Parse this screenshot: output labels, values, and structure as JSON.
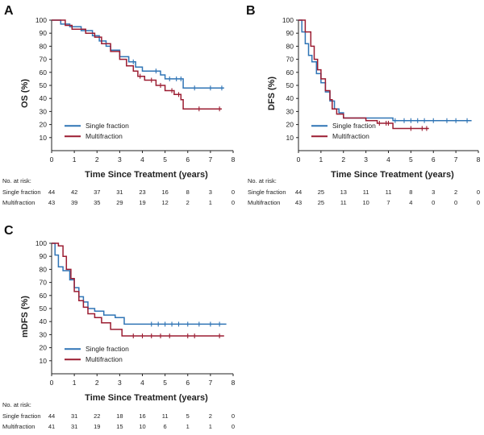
{
  "colors": {
    "single": "#2f74b5",
    "multi": "#9b1c31",
    "axis": "#222222"
  },
  "risk_header": "No. at risk:",
  "chart_data": [
    {
      "panel": "A",
      "type": "line",
      "xlabel": "Time Since Treatment (years)",
      "ylabel": "OS (%)",
      "xlim": [
        0,
        8
      ],
      "ylim": [
        0,
        100
      ],
      "xticks": [
        "0",
        "1",
        "2",
        "3",
        "4",
        "5",
        "6",
        "7",
        "8"
      ],
      "yticks": [
        "10",
        "20",
        "30",
        "40",
        "50",
        "60",
        "70",
        "80",
        "90",
        "100"
      ],
      "legend": "bottom-left",
      "series": [
        {
          "name": "Single fraction",
          "color_key": "single",
          "points": [
            [
              0,
              100
            ],
            [
              0.4,
              100
            ],
            [
              0.4,
              97
            ],
            [
              0.8,
              97
            ],
            [
              0.8,
              95
            ],
            [
              1.3,
              95
            ],
            [
              1.3,
              92
            ],
            [
              1.8,
              92
            ],
            [
              1.8,
              88
            ],
            [
              2.1,
              88
            ],
            [
              2.1,
              84
            ],
            [
              2.4,
              84
            ],
            [
              2.4,
              80
            ],
            [
              2.6,
              80
            ],
            [
              2.6,
              77
            ],
            [
              3.0,
              77
            ],
            [
              3.0,
              72
            ],
            [
              3.4,
              72
            ],
            [
              3.4,
              68
            ],
            [
              3.7,
              68
            ],
            [
              3.7,
              64
            ],
            [
              4.0,
              64
            ],
            [
              4.0,
              61
            ],
            [
              4.8,
              61
            ],
            [
              4.8,
              58
            ],
            [
              5.0,
              58
            ],
            [
              5.0,
              55
            ],
            [
              5.8,
              55
            ],
            [
              5.8,
              48
            ],
            [
              7.6,
              48
            ]
          ],
          "censors": [
            [
              3.4,
              70
            ],
            [
              3.6,
              68
            ],
            [
              4.6,
              61
            ],
            [
              5.2,
              55
            ],
            [
              5.5,
              55
            ],
            [
              5.7,
              55
            ],
            [
              6.3,
              48
            ],
            [
              7.0,
              48
            ],
            [
              7.5,
              48
            ]
          ],
          "risk": [
            "44",
            "42",
            "37",
            "31",
            "23",
            "16",
            "8",
            "3",
            "0"
          ]
        },
        {
          "name": "Multifraction",
          "color_key": "multi",
          "points": [
            [
              0,
              100
            ],
            [
              0.6,
              100
            ],
            [
              0.6,
              96
            ],
            [
              0.9,
              96
            ],
            [
              0.9,
              93
            ],
            [
              1.5,
              93
            ],
            [
              1.5,
              90
            ],
            [
              1.9,
              90
            ],
            [
              1.9,
              87
            ],
            [
              2.2,
              87
            ],
            [
              2.2,
              82
            ],
            [
              2.6,
              82
            ],
            [
              2.6,
              76
            ],
            [
              3.0,
              76
            ],
            [
              3.0,
              70
            ],
            [
              3.3,
              70
            ],
            [
              3.3,
              65
            ],
            [
              3.6,
              65
            ],
            [
              3.6,
              61
            ],
            [
              3.8,
              61
            ],
            [
              3.8,
              57
            ],
            [
              4.1,
              57
            ],
            [
              4.1,
              54
            ],
            [
              4.6,
              54
            ],
            [
              4.6,
              50
            ],
            [
              5.0,
              50
            ],
            [
              5.0,
              46
            ],
            [
              5.4,
              46
            ],
            [
              5.4,
              43
            ],
            [
              5.7,
              43
            ],
            [
              5.7,
              39
            ],
            [
              5.8,
              39
            ],
            [
              5.8,
              32
            ],
            [
              7.5,
              32
            ]
          ],
          "censors": [
            [
              3.9,
              57
            ],
            [
              4.4,
              54
            ],
            [
              4.8,
              50
            ],
            [
              5.3,
              46
            ],
            [
              5.6,
              43
            ],
            [
              6.5,
              32
            ],
            [
              7.4,
              32
            ]
          ],
          "risk": [
            "43",
            "39",
            "35",
            "29",
            "19",
            "12",
            "2",
            "1",
            "0"
          ]
        }
      ]
    },
    {
      "panel": "B",
      "type": "line",
      "xlabel": "Time Since Treatment (years)",
      "ylabel": "DFS (%)",
      "xlim": [
        0,
        8
      ],
      "ylim": [
        0,
        100
      ],
      "xticks": [
        "0",
        "1",
        "2",
        "3",
        "4",
        "5",
        "6",
        "7",
        "8"
      ],
      "yticks": [
        "10",
        "20",
        "30",
        "40",
        "50",
        "60",
        "70",
        "80",
        "90",
        "100"
      ],
      "legend": "bottom-left",
      "series": [
        {
          "name": "Single fraction",
          "color_key": "single",
          "points": [
            [
              0,
              100
            ],
            [
              0.15,
              100
            ],
            [
              0.15,
              91
            ],
            [
              0.3,
              91
            ],
            [
              0.3,
              82
            ],
            [
              0.45,
              82
            ],
            [
              0.45,
              73
            ],
            [
              0.6,
              73
            ],
            [
              0.6,
              68
            ],
            [
              0.8,
              68
            ],
            [
              0.8,
              59
            ],
            [
              1.0,
              59
            ],
            [
              1.0,
              52
            ],
            [
              1.2,
              52
            ],
            [
              1.2,
              45
            ],
            [
              1.4,
              45
            ],
            [
              1.4,
              38
            ],
            [
              1.6,
              38
            ],
            [
              1.6,
              32
            ],
            [
              1.8,
              32
            ],
            [
              1.8,
              29
            ],
            [
              2.0,
              29
            ],
            [
              2.0,
              25
            ],
            [
              4.2,
              25
            ],
            [
              4.2,
              23
            ],
            [
              7.7,
              23
            ]
          ],
          "censors": [
            [
              4.3,
              23
            ],
            [
              4.7,
              23
            ],
            [
              5.0,
              23
            ],
            [
              5.3,
              23
            ],
            [
              5.6,
              23
            ],
            [
              6.0,
              23
            ],
            [
              6.6,
              23
            ],
            [
              7.0,
              23
            ],
            [
              7.5,
              23
            ]
          ],
          "risk": [
            "44",
            "25",
            "13",
            "11",
            "11",
            "8",
            "3",
            "2",
            "0"
          ]
        },
        {
          "name": "Multifraction",
          "color_key": "multi",
          "points": [
            [
              0,
              100
            ],
            [
              0.3,
              100
            ],
            [
              0.3,
              91
            ],
            [
              0.55,
              91
            ],
            [
              0.55,
              80
            ],
            [
              0.7,
              80
            ],
            [
              0.7,
              70
            ],
            [
              0.85,
              70
            ],
            [
              0.85,
              62
            ],
            [
              1.0,
              62
            ],
            [
              1.0,
              55
            ],
            [
              1.2,
              55
            ],
            [
              1.2,
              46
            ],
            [
              1.4,
              46
            ],
            [
              1.4,
              39
            ],
            [
              1.5,
              39
            ],
            [
              1.5,
              32
            ],
            [
              1.7,
              32
            ],
            [
              1.7,
              28
            ],
            [
              2.0,
              28
            ],
            [
              2.0,
              25
            ],
            [
              3.0,
              25
            ],
            [
              3.0,
              23
            ],
            [
              3.5,
              23
            ],
            [
              3.5,
              21
            ],
            [
              4.2,
              21
            ],
            [
              4.2,
              17
            ],
            [
              5.8,
              17
            ]
          ],
          "censors": [
            [
              3.6,
              21
            ],
            [
              3.9,
              21
            ],
            [
              4.0,
              21
            ],
            [
              5.0,
              17
            ],
            [
              5.5,
              17
            ],
            [
              5.7,
              17
            ]
          ],
          "risk": [
            "43",
            "25",
            "11",
            "10",
            "7",
            "4",
            "0",
            "0",
            "0"
          ]
        }
      ]
    },
    {
      "panel": "C",
      "type": "line",
      "xlabel": "Time Since Treatment (years)",
      "ylabel": "mDFS (%)",
      "xlim": [
        0,
        8
      ],
      "ylim": [
        0,
        100
      ],
      "xticks": [
        "0",
        "1",
        "2",
        "3",
        "4",
        "5",
        "6",
        "7",
        "8"
      ],
      "yticks": [
        "10",
        "20",
        "30",
        "40",
        "50",
        "60",
        "70",
        "80",
        "90",
        "100"
      ],
      "legend": "bottom-left",
      "series": [
        {
          "name": "Single fraction",
          "color_key": "single",
          "points": [
            [
              0,
              100
            ],
            [
              0.15,
              100
            ],
            [
              0.15,
              91
            ],
            [
              0.3,
              91
            ],
            [
              0.3,
              82
            ],
            [
              0.5,
              82
            ],
            [
              0.5,
              79
            ],
            [
              0.8,
              79
            ],
            [
              0.8,
              72
            ],
            [
              1.0,
              72
            ],
            [
              1.0,
              66
            ],
            [
              1.2,
              66
            ],
            [
              1.2,
              59
            ],
            [
              1.4,
              59
            ],
            [
              1.4,
              55
            ],
            [
              1.6,
              55
            ],
            [
              1.6,
              50
            ],
            [
              1.9,
              50
            ],
            [
              1.9,
              48
            ],
            [
              2.3,
              48
            ],
            [
              2.3,
              45
            ],
            [
              2.8,
              45
            ],
            [
              2.8,
              43
            ],
            [
              3.2,
              43
            ],
            [
              3.2,
              38
            ],
            [
              7.7,
              38
            ]
          ],
          "censors": [
            [
              4.4,
              38
            ],
            [
              4.7,
              38
            ],
            [
              5.0,
              38
            ],
            [
              5.3,
              38
            ],
            [
              5.6,
              38
            ],
            [
              6.0,
              38
            ],
            [
              6.5,
              38
            ],
            [
              7.0,
              38
            ],
            [
              7.4,
              38
            ]
          ],
          "risk": [
            "44",
            "31",
            "22",
            "18",
            "16",
            "11",
            "5",
            "2",
            "0"
          ]
        },
        {
          "name": "Multifraction",
          "color_key": "multi",
          "points": [
            [
              0,
              100
            ],
            [
              0.3,
              100
            ],
            [
              0.3,
              98
            ],
            [
              0.5,
              98
            ],
            [
              0.5,
              90
            ],
            [
              0.65,
              90
            ],
            [
              0.65,
              80
            ],
            [
              0.85,
              80
            ],
            [
              0.85,
              73
            ],
            [
              1.0,
              73
            ],
            [
              1.0,
              63
            ],
            [
              1.2,
              63
            ],
            [
              1.2,
              56
            ],
            [
              1.4,
              56
            ],
            [
              1.4,
              51
            ],
            [
              1.6,
              51
            ],
            [
              1.6,
              46
            ],
            [
              1.9,
              46
            ],
            [
              1.9,
              43
            ],
            [
              2.2,
              43
            ],
            [
              2.2,
              39
            ],
            [
              2.6,
              39
            ],
            [
              2.6,
              34
            ],
            [
              3.1,
              34
            ],
            [
              3.1,
              29
            ],
            [
              7.6,
              29
            ]
          ],
          "censors": [
            [
              3.6,
              29
            ],
            [
              4.0,
              29
            ],
            [
              4.4,
              29
            ],
            [
              4.8,
              29
            ],
            [
              5.2,
              29
            ],
            [
              6.0,
              29
            ],
            [
              6.3,
              29
            ],
            [
              7.4,
              29
            ]
          ],
          "risk": [
            "41",
            "31",
            "19",
            "15",
            "10",
            "6",
            "1",
            "1",
            "0"
          ]
        }
      ]
    }
  ]
}
